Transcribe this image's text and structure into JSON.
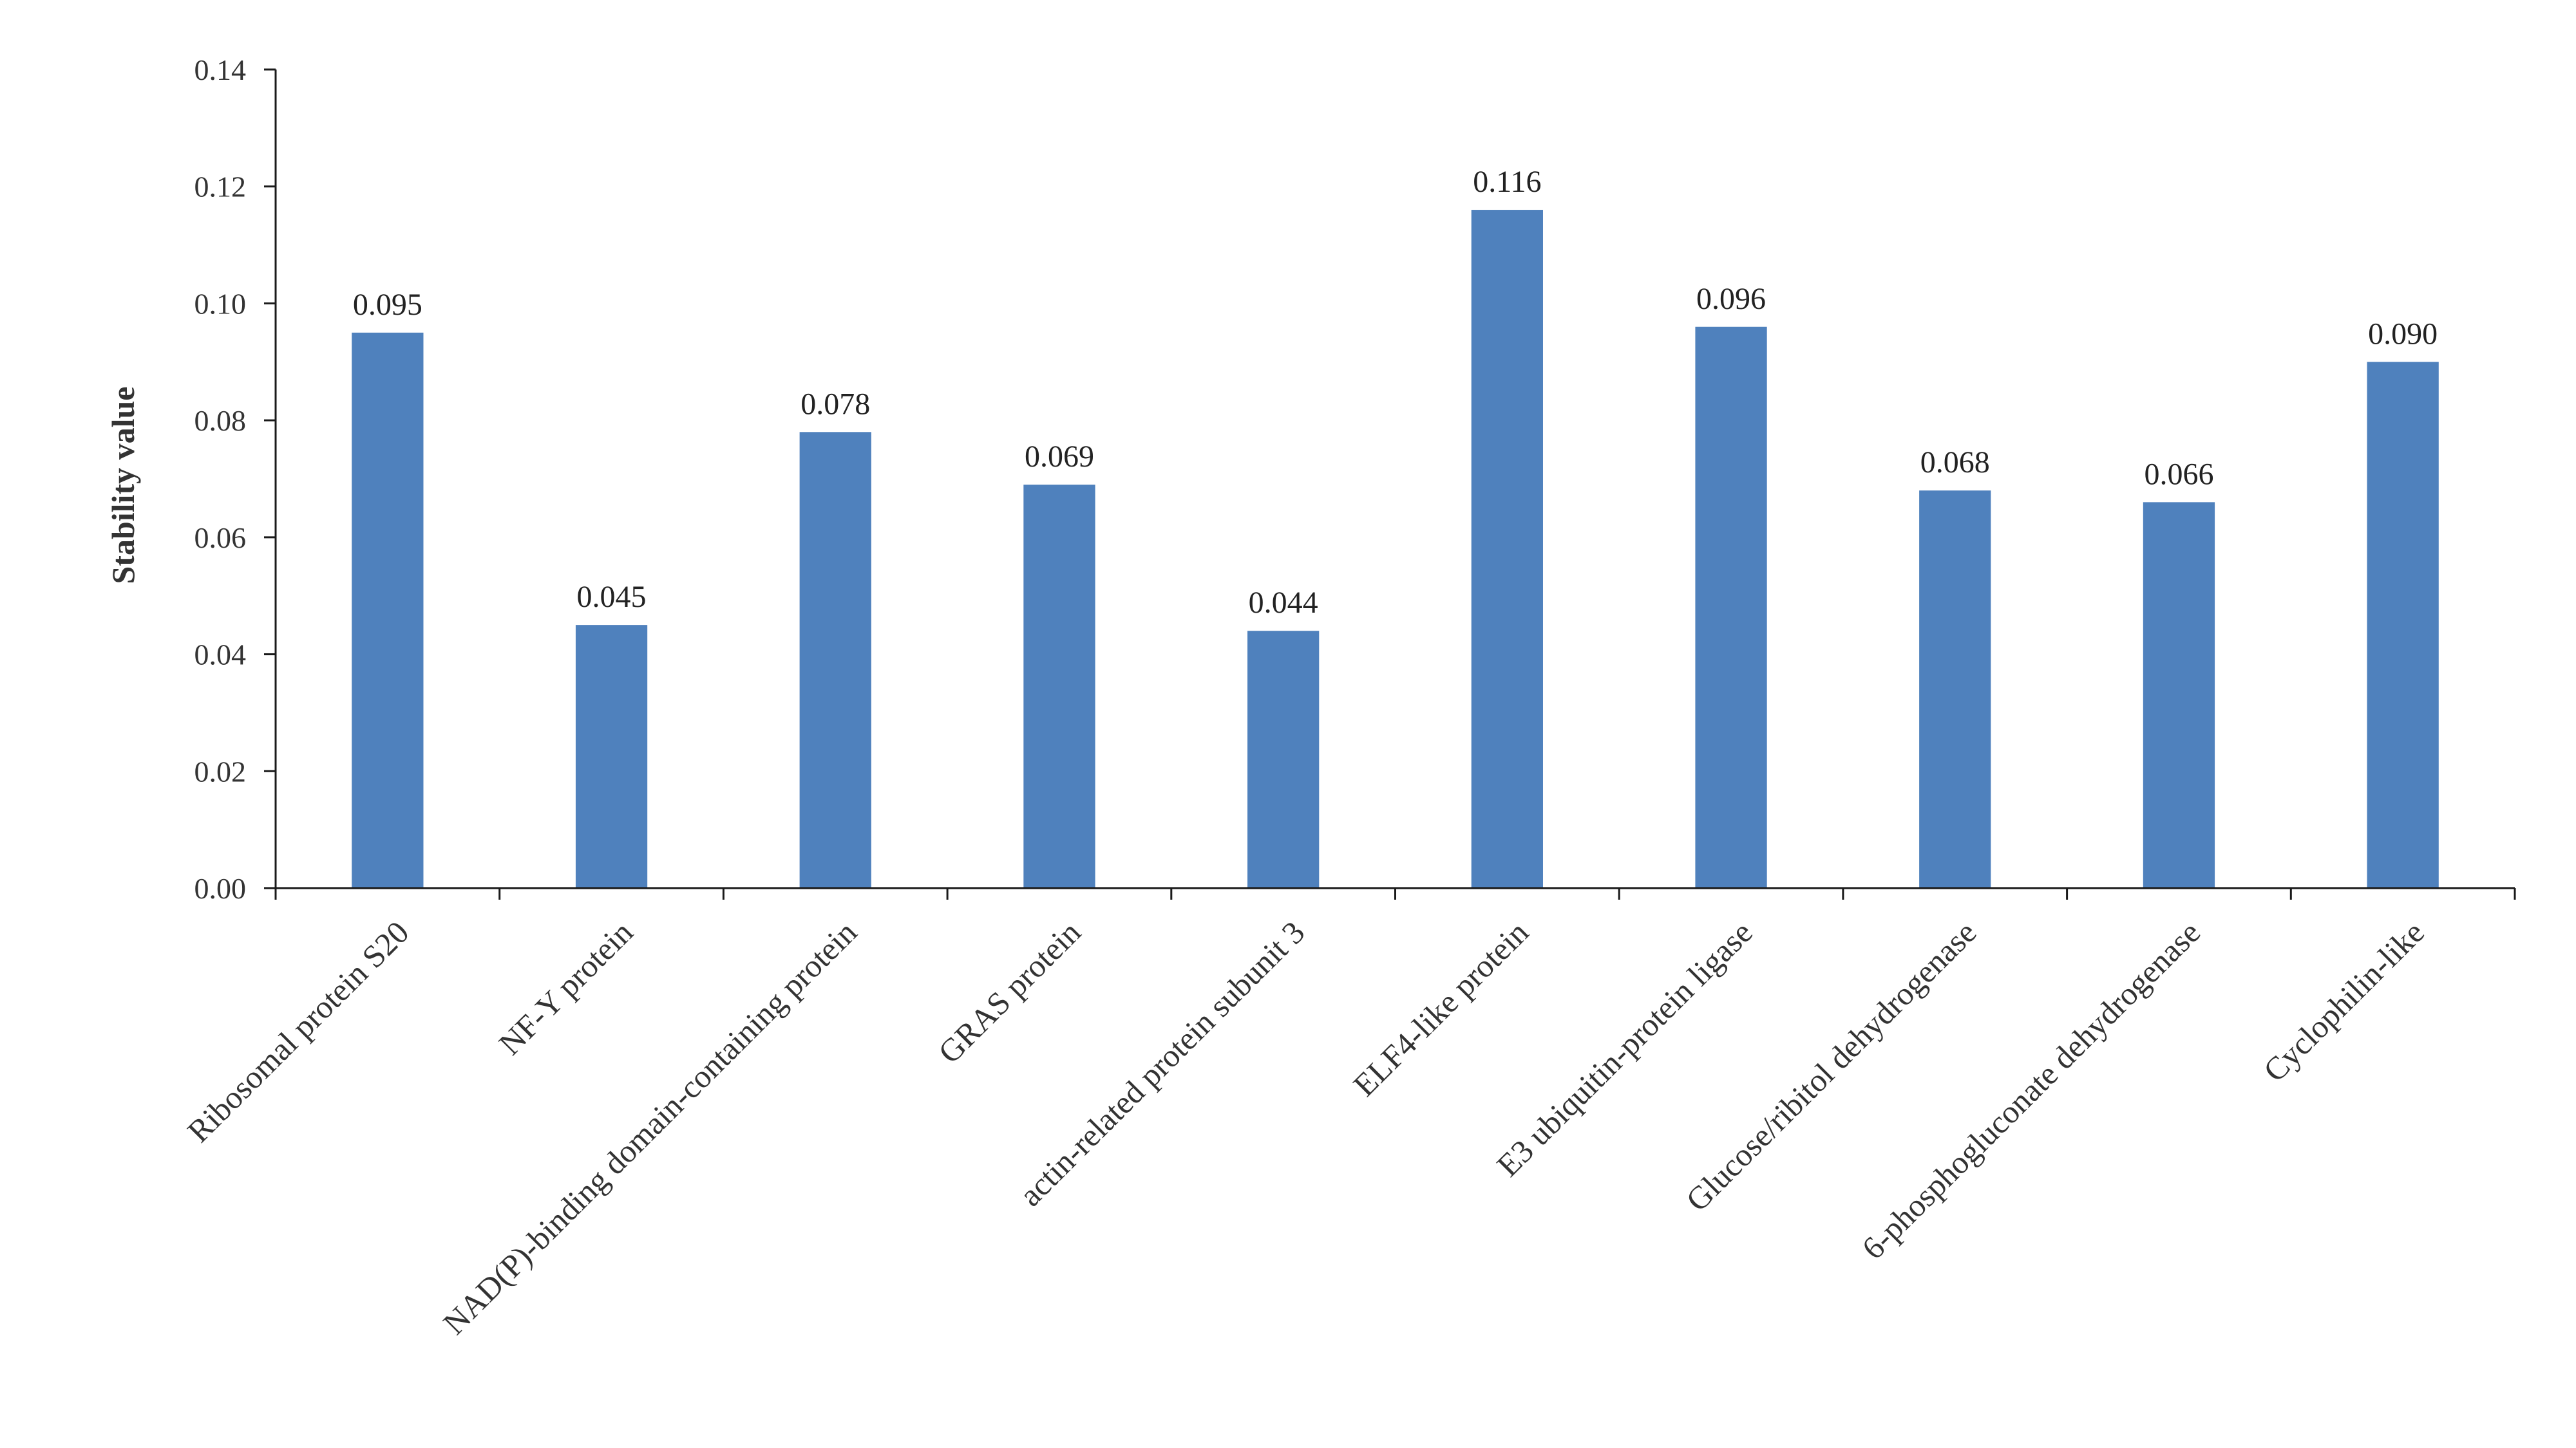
{
  "chart_data": {
    "type": "bar",
    "title": "",
    "xlabel": "",
    "ylabel": "Stability value",
    "ylim": [
      0,
      0.14
    ],
    "y_ticks": [
      "0.00",
      "0.02",
      "0.04",
      "0.06",
      "0.08",
      "0.10",
      "0.12",
      "0.14"
    ],
    "grid": false,
    "legend": "none",
    "bar_color": "#4f81bd",
    "categories": [
      "Ribosomal protein S20",
      "NF-Y protein",
      "NAD(P)-binding domain-containing protein",
      "GRAS protein",
      "actin-related protein subunit 3",
      "ELF4-like protein",
      "E3 ubiquitin-protein ligase",
      "Glucose/ribitol dehydrogenase",
      "6-phosphogluconate dehydrogenase",
      "Cyclophilin-like"
    ],
    "values": [
      0.095,
      0.045,
      0.078,
      0.069,
      0.044,
      0.116,
      0.096,
      0.068,
      0.066,
      0.09
    ],
    "data_labels": [
      "0.095",
      "0.045",
      "0.078",
      "0.069",
      "0.044",
      "0.116",
      "0.096",
      "0.068",
      "0.066",
      "0.090"
    ]
  }
}
